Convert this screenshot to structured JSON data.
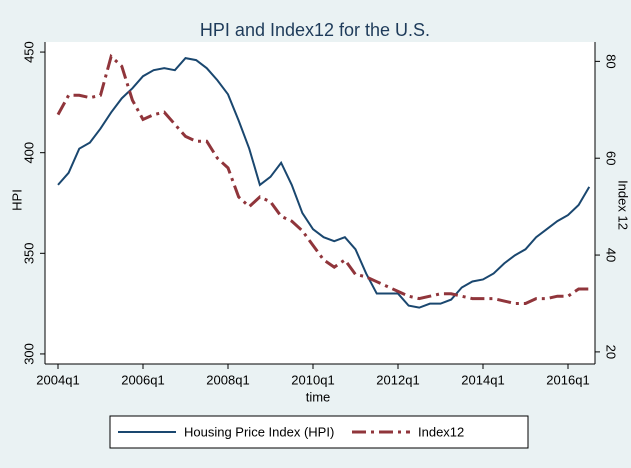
{
  "chart_data": {
    "type": "line",
    "title": "HPI and Index12 for the U.S.",
    "x_label": "time",
    "y_label": "HPI",
    "y2_label": "Index 12",
    "categories": [
      "2004q1",
      null,
      null,
      null,
      null,
      null,
      null,
      null,
      "2006q1",
      null,
      null,
      null,
      null,
      null,
      null,
      null,
      "2008q1",
      null,
      null,
      null,
      null,
      null,
      null,
      null,
      "2010q1",
      null,
      null,
      null,
      null,
      null,
      null,
      null,
      "2012q1",
      null,
      null,
      null,
      null,
      null,
      null,
      null,
      "2014q1",
      null,
      null,
      null,
      null,
      null,
      null,
      null,
      "2016q1",
      null,
      null
    ],
    "series": [
      {
        "name": "Housing Price Index (HPI)",
        "color": "#1a476f",
        "axis": "y",
        "values": [
          384,
          390,
          402,
          405,
          412,
          420,
          427,
          432,
          438,
          441,
          442,
          441,
          447,
          446,
          442,
          436,
          429,
          416,
          402,
          384,
          388,
          395,
          384,
          370,
          362,
          358,
          356,
          358,
          352,
          340,
          330,
          330,
          330,
          324,
          323,
          325,
          325,
          327,
          333,
          336,
          337,
          340,
          345,
          349,
          352,
          358,
          362,
          366,
          369,
          374,
          383
        ]
      },
      {
        "name": "Index12",
        "color": "#90353b",
        "axis": "y2",
        "values": [
          69,
          73,
          73,
          72.5,
          73,
          81,
          79,
          72,
          68,
          69,
          69.5,
          67,
          64.5,
          63.5,
          63.5,
          60,
          58,
          52,
          50,
          52,
          51,
          48,
          47,
          45,
          42,
          39,
          37.5,
          39,
          36,
          35.5,
          34.5,
          33.5,
          32.5,
          31.5,
          31,
          31.5,
          32,
          32,
          31.5,
          31,
          31,
          31,
          30.5,
          30,
          30,
          31,
          31,
          31.5,
          31.5,
          33,
          33
        ]
      }
    ],
    "ylim": [
      295,
      455
    ],
    "yticks": [
      300,
      350,
      400,
      450
    ],
    "y2lim": [
      17.5,
      84
    ],
    "y2ticks": [
      20,
      40,
      60,
      80
    ],
    "legend": "bottom"
  }
}
